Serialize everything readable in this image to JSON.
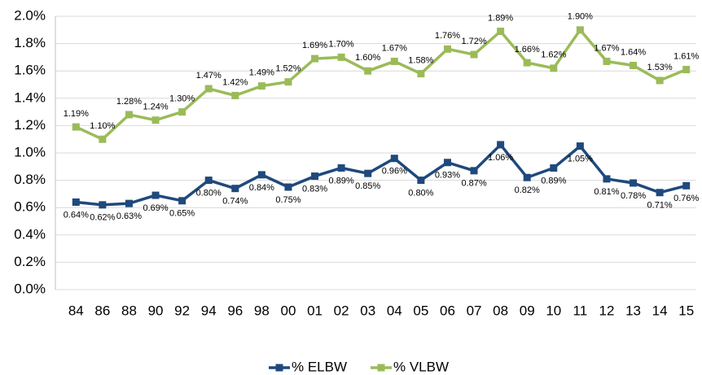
{
  "chart_data": {
    "type": "line",
    "categories": [
      "84",
      "86",
      "88",
      "90",
      "92",
      "94",
      "96",
      "98",
      "00",
      "01",
      "02",
      "03",
      "04",
      "05",
      "06",
      "07",
      "08",
      "09",
      "10",
      "11",
      "12",
      "13",
      "14",
      "15"
    ],
    "series": [
      {
        "name": "% ELBW",
        "color": "#1f497d",
        "values": [
          0.64,
          0.62,
          0.63,
          0.69,
          0.65,
          0.8,
          0.74,
          0.84,
          0.75,
          0.83,
          0.89,
          0.85,
          0.96,
          0.8,
          0.93,
          0.87,
          1.06,
          0.82,
          0.89,
          1.05,
          0.81,
          0.78,
          0.71,
          0.76
        ],
        "value_labels": [
          "0.64%",
          "0.62%",
          "0.63%",
          "0.69%",
          "0.65%",
          "0.80%",
          "0.74%",
          "0.84%",
          "0.75%",
          "0.83%",
          "0.89%",
          "0.85%",
          "0.96%",
          "0.80%",
          "0.93%",
          "0.87%",
          "1.06%",
          "0.82%",
          "0.89%",
          "1.05%",
          "0.81%",
          "0.78%",
          "0.71%",
          "0.76%"
        ]
      },
      {
        "name": "% VLBW",
        "color": "#9bbb59",
        "values": [
          1.19,
          1.1,
          1.28,
          1.24,
          1.3,
          1.47,
          1.42,
          1.49,
          1.52,
          1.69,
          1.7,
          1.6,
          1.67,
          1.58,
          1.76,
          1.72,
          1.89,
          1.66,
          1.62,
          1.9,
          1.67,
          1.64,
          1.53,
          1.61
        ],
        "value_labels": [
          "1.19%",
          "1.10%",
          "1.28%",
          "1.24%",
          "1.30%",
          "1.47%",
          "1.42%",
          "1.49%",
          "1.52%",
          "1.69%",
          "1.70%",
          "1.60%",
          "1.67%",
          "1.58%",
          "1.76%",
          "1.72%",
          "1.89%",
          "1.66%",
          "1.62%",
          "1.90%",
          "1.67%",
          "1.64%",
          "1.53%",
          "1.61%"
        ]
      }
    ],
    "ylim": [
      0,
      2.0
    ],
    "yticks": [
      {
        "value": 0,
        "label": "0.0%"
      },
      {
        "value": 0.2,
        "label": "0.2%"
      },
      {
        "value": 0.4,
        "label": "0.4%"
      },
      {
        "value": 0.6,
        "label": "0.6%"
      },
      {
        "value": 0.8,
        "label": "0.8%"
      },
      {
        "value": 1.0,
        "label": "1.0%"
      },
      {
        "value": 1.2,
        "label": "1.2%"
      },
      {
        "value": 1.4,
        "label": "1.4%"
      },
      {
        "value": 1.6,
        "label": "1.6%"
      },
      {
        "value": 1.8,
        "label": "1.8%"
      },
      {
        "value": 2.0,
        "label": "2.0%"
      }
    ],
    "grid": true,
    "legend": "bottom"
  }
}
